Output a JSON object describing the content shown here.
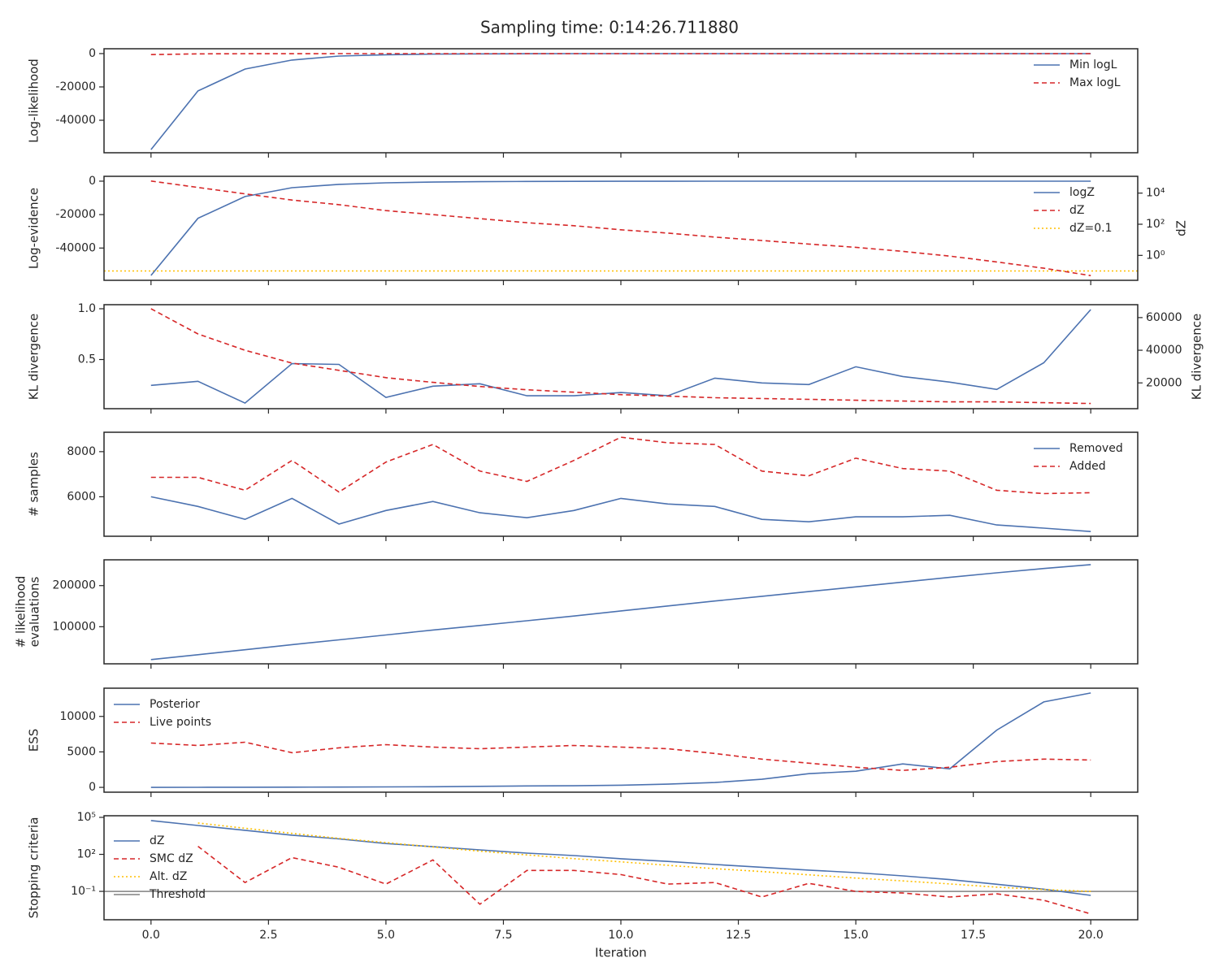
{
  "title": "Sampling time: 0:14:26.711880",
  "chart_data": [
    {
      "type": "line",
      "ylabel": "Log-likelihood",
      "x": [
        0,
        1,
        2,
        3,
        4,
        5,
        6,
        7,
        8,
        9,
        10,
        11,
        12,
        13,
        14,
        15,
        16,
        17,
        18,
        19,
        20
      ],
      "xlim": [
        -1,
        21
      ],
      "ylim": [
        -59500,
        2900
      ],
      "yticks": [
        0,
        -20000,
        -40000
      ],
      "legend": "upper right",
      "series": [
        {
          "name": "Min logL",
          "color": "#4c72b0",
          "style": "solid",
          "values": [
            -57600,
            -22400,
            -9300,
            -3900,
            -1500,
            -700,
            -300,
            -150,
            -80,
            -40,
            -20,
            -10,
            -5,
            -3,
            -2,
            -1,
            -1,
            -1,
            -1,
            -1,
            -1
          ]
        },
        {
          "name": "Max logL",
          "color": "#d62728",
          "style": "dashed",
          "values": [
            -600,
            -150,
            -90,
            -60,
            -40,
            -30,
            -20,
            -15,
            -10,
            -8,
            -6,
            -5,
            -4,
            -3,
            -2,
            -2,
            -1,
            -1,
            -1,
            -1,
            -1
          ]
        }
      ]
    },
    {
      "type": "line",
      "ylabel": "Log-evidence",
      "y2label": "dZ",
      "x": [
        0,
        1,
        2,
        3,
        4,
        5,
        6,
        7,
        8,
        9,
        10,
        11,
        12,
        13,
        14,
        15,
        16,
        17,
        18,
        19,
        20
      ],
      "xlim": [
        -1,
        21
      ],
      "ylim": [
        -59300,
        2900
      ],
      "yticks": [
        0,
        -20000,
        -40000
      ],
      "y2lim": [
        0.025,
        120000
      ],
      "y2log": true,
      "y2ticks": [
        {
          "value": 10000,
          "label": "10⁴"
        },
        {
          "value": 100,
          "label": "10²"
        },
        {
          "value": 1,
          "label": "10⁰"
        }
      ],
      "legend": "upper right",
      "series": [
        {
          "name": "logZ",
          "color": "#4c72b0",
          "style": "solid",
          "values": [
            -56400,
            -22200,
            -9200,
            -3900,
            -1900,
            -1000,
            -550,
            -300,
            -170,
            -100,
            -60,
            -40,
            -25,
            -15,
            -10,
            -6,
            -4,
            -3,
            -2,
            -2,
            -2
          ]
        },
        {
          "name": "dZ",
          "color": "#d62728",
          "style": "dashed",
          "axis": "y2",
          "values": [
            60000,
            23000,
            9000,
            3600,
            1800,
            750,
            420,
            230,
            126,
            80,
            44,
            27,
            15,
            9,
            5.3,
            3.3,
            1.8,
            0.9,
            0.38,
            0.15,
            0.05
          ]
        }
      ],
      "hlines": [
        {
          "name": "dZ=0.1",
          "color": "#ffbf00",
          "style": "dotted",
          "axis": "y2",
          "value": 0.1
        }
      ]
    },
    {
      "type": "line",
      "ylabel": "KL divergence",
      "y2label": "KL divergence",
      "x": [
        0,
        1,
        2,
        3,
        4,
        5,
        6,
        7,
        8,
        9,
        10,
        11,
        12,
        13,
        14,
        15,
        16,
        17,
        18,
        19,
        20
      ],
      "xlim": [
        -1,
        21
      ],
      "ylim": [
        0.016,
        1.04
      ],
      "yticks": [
        {
          "value": 1,
          "label": "1.0"
        },
        0.5
      ],
      "y2lim": [
        4200,
        67900
      ],
      "y2ticks": [
        60000,
        40000,
        20000
      ],
      "series": [
        {
          "color": "#4c72b0",
          "style": "solid",
          "values": [
            0.246,
            0.286,
            0.071,
            0.46,
            0.452,
            0.127,
            0.238,
            0.262,
            0.143,
            0.143,
            0.175,
            0.143,
            0.317,
            0.27,
            0.254,
            0.429,
            0.333,
            0.278,
            0.206,
            0.468,
            0.992
          ]
        },
        {
          "color": "#d62728",
          "style": "dashed",
          "axis": "y2",
          "values": [
            65400,
            50000,
            40000,
            32100,
            27700,
            23200,
            20300,
            17800,
            15800,
            14300,
            12800,
            11900,
            10900,
            10400,
            9900,
            9400,
            8900,
            8400,
            8400,
            7900,
            7400
          ]
        }
      ]
    },
    {
      "type": "line",
      "ylabel": "# samples",
      "x": [
        0,
        1,
        2,
        3,
        4,
        5,
        6,
        7,
        8,
        9,
        10,
        11,
        12,
        13,
        14,
        15,
        16,
        17,
        18,
        19,
        20
      ],
      "xlim": [
        -1,
        21
      ],
      "ylim": [
        4250,
        8860
      ],
      "yticks": [
        8000,
        6000
      ],
      "legend": "upper right",
      "series": [
        {
          "name": "Removed",
          "color": "#4c72b0",
          "style": "solid",
          "values": [
            6000,
            5570,
            5000,
            5930,
            4790,
            5390,
            5790,
            5290,
            5070,
            5390,
            5930,
            5680,
            5570,
            5000,
            4890,
            5110,
            5110,
            5180,
            4750,
            4610,
            4460
          ]
        },
        {
          "name": "Added",
          "color": "#d62728",
          "style": "dashed",
          "values": [
            6860,
            6860,
            6290,
            7610,
            6210,
            7540,
            8320,
            7140,
            6680,
            7610,
            8640,
            8390,
            8320,
            7140,
            6930,
            7710,
            7250,
            7140,
            6290,
            6140,
            6180
          ]
        }
      ]
    },
    {
      "type": "line",
      "ylabel": [
        "# likelihood",
        "evaluations"
      ],
      "x": [
        0,
        1,
        2,
        3,
        4,
        5,
        6,
        7,
        8,
        9,
        10,
        11,
        12,
        13,
        14,
        15,
        16,
        17,
        18,
        19,
        20
      ],
      "xlim": [
        -1,
        21
      ],
      "ylim": [
        9800,
        262700
      ],
      "yticks": [
        200000,
        100000
      ],
      "series": [
        {
          "color": "#4c72b0",
          "style": "solid",
          "values": [
            20000,
            32000,
            44000,
            56500,
            68000,
            80000,
            92000,
            103000,
            114500,
            126000,
            138500,
            150500,
            162500,
            174000,
            185500,
            197000,
            208500,
            220000,
            231000,
            241500,
            251000
          ]
        }
      ]
    },
    {
      "type": "line",
      "ylabel": "ESS",
      "x": [
        0,
        1,
        2,
        3,
        4,
        5,
        6,
        7,
        8,
        9,
        10,
        11,
        12,
        13,
        14,
        15,
        16,
        17,
        18,
        19,
        20
      ],
      "xlim": [
        -1,
        21
      ],
      "ylim": [
        -680,
        13980
      ],
      "yticks": [
        10000,
        5000,
        0
      ],
      "legend": "upper left",
      "series": [
        {
          "name": "Posterior",
          "color": "#4c72b0",
          "style": "solid",
          "values": [
            0,
            10,
            20,
            30,
            40,
            60,
            90,
            150,
            200,
            230,
            300,
            450,
            680,
            1140,
            1930,
            2270,
            3300,
            2610,
            8070,
            12050,
            13300
          ]
        },
        {
          "name": "Live points",
          "color": "#d62728",
          "style": "dashed",
          "values": [
            6250,
            5910,
            6360,
            4890,
            5570,
            6020,
            5680,
            5450,
            5680,
            5910,
            5680,
            5450,
            4770,
            3980,
            3410,
            2840,
            2390,
            2840,
            3640,
            3980,
            3860
          ]
        }
      ]
    },
    {
      "type": "line",
      "ylabel": "Stopping criteria",
      "xlabel": "Iteration",
      "x": [
        0,
        1,
        2,
        3,
        4,
        5,
        6,
        7,
        8,
        9,
        10,
        11,
        12,
        13,
        14,
        15,
        16,
        17,
        18,
        19,
        20
      ],
      "xlim": [
        -1,
        21
      ],
      "xticks": [
        {
          "value": 0,
          "label": "0.0"
        },
        {
          "value": 2.5,
          "label": "2.5"
        },
        {
          "value": 5,
          "label": "5.0"
        },
        {
          "value": 7.5,
          "label": "7.5"
        },
        {
          "value": 10,
          "label": "10.0"
        },
        {
          "value": 12.5,
          "label": "12.5"
        },
        {
          "value": 15,
          "label": "15.0"
        },
        {
          "value": 17.5,
          "label": "17.5"
        },
        {
          "value": 20,
          "label": "20.0"
        }
      ],
      "ylim": [
        0.0005,
        135000
      ],
      "ylog": true,
      "yticks": [
        {
          "value": 100000,
          "label": "10⁵"
        },
        {
          "value": 100,
          "label": "10²"
        },
        {
          "value": 0.1,
          "label": "10⁻¹"
        }
      ],
      "legend": "center left",
      "series": [
        {
          "name": "dZ",
          "color": "#4c72b0",
          "style": "solid",
          "values": [
            55000,
            22000,
            9000,
            3600,
            1800,
            750,
            420,
            230,
            126,
            80,
            44,
            27,
            15,
            9,
            5.3,
            3.3,
            1.8,
            0.9,
            0.38,
            0.15,
            0.047
          ]
        },
        {
          "name": "SMC dZ",
          "color": "#d62728",
          "style": "dashed",
          "values": [
            null,
            450,
            0.52,
            55,
            9,
            0.39,
            35,
            0.009,
            5,
            5,
            2.3,
            0.39,
            0.52,
            0.035,
            0.45,
            0.1,
            0.074,
            0.035,
            0.063,
            0.019,
            0.0015
          ]
        },
        {
          "name": "Alt. dZ",
          "color": "#ffbf00",
          "style": "dotted",
          "values": [
            null,
            35000,
            13000,
            5000,
            2000,
            900,
            400,
            180,
            90,
            45,
            25,
            13,
            7,
            4,
            2.2,
            1.2,
            0.7,
            0.4,
            0.22,
            0.14,
            0.1
          ]
        }
      ],
      "hlines": [
        {
          "name": "Threshold",
          "color": "#808080",
          "style": "solid",
          "value": 0.1
        }
      ]
    }
  ]
}
